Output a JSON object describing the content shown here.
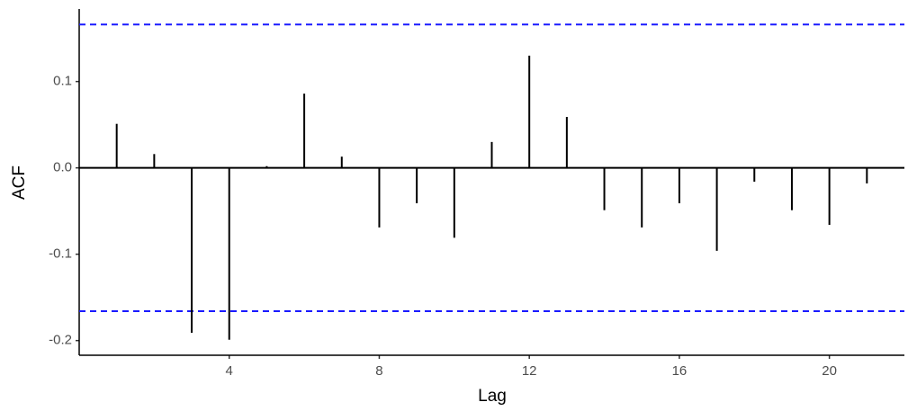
{
  "chart_data": {
    "type": "acf",
    "x_label": "Lag",
    "y_label": "ACF",
    "x": [
      1,
      2,
      3,
      4,
      5,
      6,
      7,
      8,
      9,
      10,
      11,
      12,
      13,
      14,
      15,
      16,
      17,
      18,
      19,
      20,
      21
    ],
    "values": [
      0.051,
      0.016,
      -0.191,
      -0.199,
      0.002,
      0.086,
      0.013,
      -0.069,
      -0.041,
      -0.081,
      0.03,
      0.13,
      0.059,
      -0.049,
      -0.069,
      -0.041,
      -0.096,
      -0.016,
      -0.049,
      -0.066,
      -0.018
    ],
    "color": "#000000",
    "ci_lines": [
      0.166,
      -0.166
    ],
    "ci_color": "#1a1aff",
    "xlim": [
      0,
      22
    ],
    "xticks": [
      4,
      8,
      12,
      16,
      20
    ],
    "ylim": [
      -0.217,
      0.184
    ],
    "yticks": [
      -0.2,
      -0.1,
      {
        "value": 0,
        "label": "0.0"
      },
      0.1
    ]
  }
}
